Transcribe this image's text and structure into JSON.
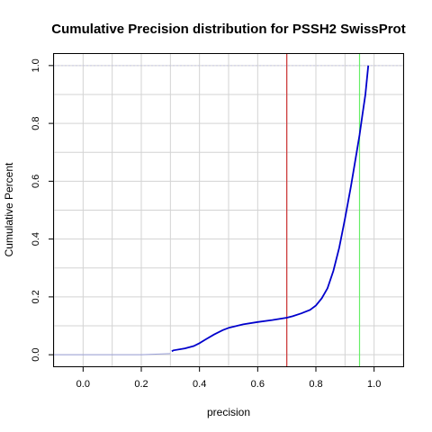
{
  "chart_data": {
    "type": "line",
    "title": "Cumulative Precision distribution for PSSH2 SwissProt",
    "xlabel": "precision",
    "ylabel": "Cumulative Percent",
    "xlim": [
      -0.1,
      1.1
    ],
    "ylim": [
      -0.04,
      1.04
    ],
    "xticks": [
      "0.0",
      "0.2",
      "0.4",
      "0.6",
      "0.8",
      "1.0"
    ],
    "yticks": [
      "0.0",
      "0.2",
      "0.4",
      "0.6",
      "0.8",
      "1.0"
    ],
    "grid": true,
    "colors": {
      "series": "#0000cc",
      "grid": "#d3d3d3",
      "vline_red": "#cc3333",
      "vline_green": "#66ee66"
    },
    "vlines": [
      {
        "x": 0.7,
        "color": "#cc3333"
      },
      {
        "x": 0.95,
        "color": "#66ee66"
      }
    ],
    "hline": {
      "y": 1.0,
      "color": "#c8c8e0"
    },
    "series": [
      {
        "x": [
          -0.1,
          0.0,
          0.1,
          0.2,
          0.25,
          0.3,
          0.305,
          0.31,
          0.35,
          0.38,
          0.4,
          0.42,
          0.45,
          0.48,
          0.5,
          0.55,
          0.6,
          0.65,
          0.7,
          0.72,
          0.75,
          0.78,
          0.8,
          0.82,
          0.84,
          0.86,
          0.88,
          0.9,
          0.92,
          0.94,
          0.95,
          0.96,
          0.97,
          0.98
        ],
        "y": [
          0.0,
          0.0,
          0.0,
          0.0,
          0.002,
          0.004,
          0.012,
          0.015,
          0.022,
          0.03,
          0.04,
          0.052,
          0.07,
          0.085,
          0.093,
          0.105,
          0.113,
          0.12,
          0.128,
          0.133,
          0.143,
          0.155,
          0.17,
          0.195,
          0.23,
          0.29,
          0.37,
          0.47,
          0.58,
          0.7,
          0.76,
          0.83,
          0.9,
          1.0
        ]
      }
    ]
  }
}
